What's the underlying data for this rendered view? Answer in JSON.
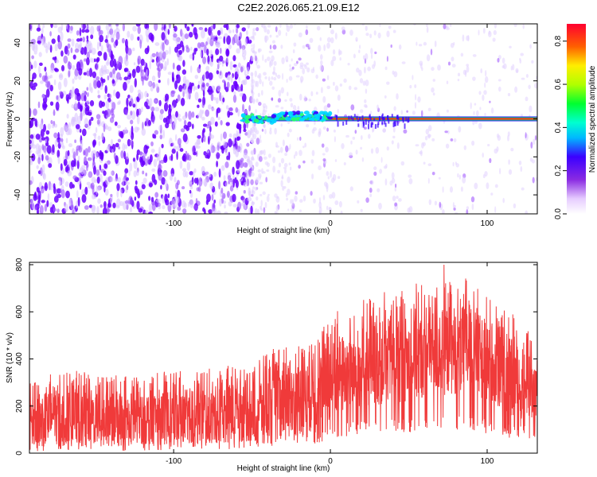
{
  "title": "C2E2.2026.065.21.09.E12",
  "colors": {
    "snr_line": "#f03a3a",
    "axis": "#000000"
  },
  "chart_data": [
    {
      "type": "heatmap",
      "title": "C2E2.2026.065.21.09.E12",
      "xlabel": "Height of straight line (km)",
      "ylabel": "Frequency (Hz)",
      "xlim": [
        -192,
        132
      ],
      "ylim": [
        -50,
        50
      ],
      "xticks": [
        -100,
        0,
        100
      ],
      "yticks": [
        40,
        20,
        0,
        -20,
        -40
      ],
      "colorbar": {
        "label": "Normalized spectral amplitude",
        "range": [
          0.0,
          0.88
        ],
        "ticks": [
          0.0,
          0.2,
          0.4,
          0.6,
          0.8
        ],
        "colormap": "rainbow (white-violet-blue-cyan-green-yellow-red)"
      },
      "features": [
        {
          "description": "dense violet noise",
          "x_range": [
            -192,
            -50
          ],
          "y_range": [
            -50,
            50
          ],
          "amplitude": 0.12
        },
        {
          "description": "sparse faint noise",
          "x_range": [
            -50,
            132
          ],
          "y_range": [
            -50,
            50
          ],
          "amplitude": 0.03
        },
        {
          "description": "0 Hz carrier line",
          "x_range": [
            -56,
            132
          ],
          "y_center": 0,
          "amplitude": 0.88
        },
        {
          "description": "sidebands near 0 Hz",
          "x_range": [
            -56,
            50
          ],
          "y_range": [
            -4,
            4
          ],
          "amplitude": 0.35
        }
      ]
    },
    {
      "type": "line",
      "xlabel": "Height of straight line (km)",
      "ylabel": "SNR (10 * v/v)",
      "xlim": [
        -192,
        132
      ],
      "ylim": [
        0,
        810
      ],
      "xticks": [
        -100,
        0,
        100
      ],
      "yticks": [
        0,
        200,
        400,
        600,
        800
      ],
      "series": [
        {
          "name": "SNR",
          "x": [
            -192,
            -160,
            -130,
            -100,
            -70,
            -45,
            -30,
            -10,
            5,
            20,
            40,
            60,
            78,
            90,
            105,
            120,
            132
          ],
          "base": [
            110,
            120,
            115,
            125,
            130,
            140,
            150,
            180,
            250,
            280,
            300,
            320,
            340,
            330,
            280,
            230,
            220
          ],
          "upper": [
            300,
            320,
            300,
            320,
            330,
            380,
            420,
            460,
            560,
            600,
            640,
            660,
            700,
            680,
            600,
            520,
            460
          ],
          "peak_max": 800
        }
      ]
    }
  ]
}
